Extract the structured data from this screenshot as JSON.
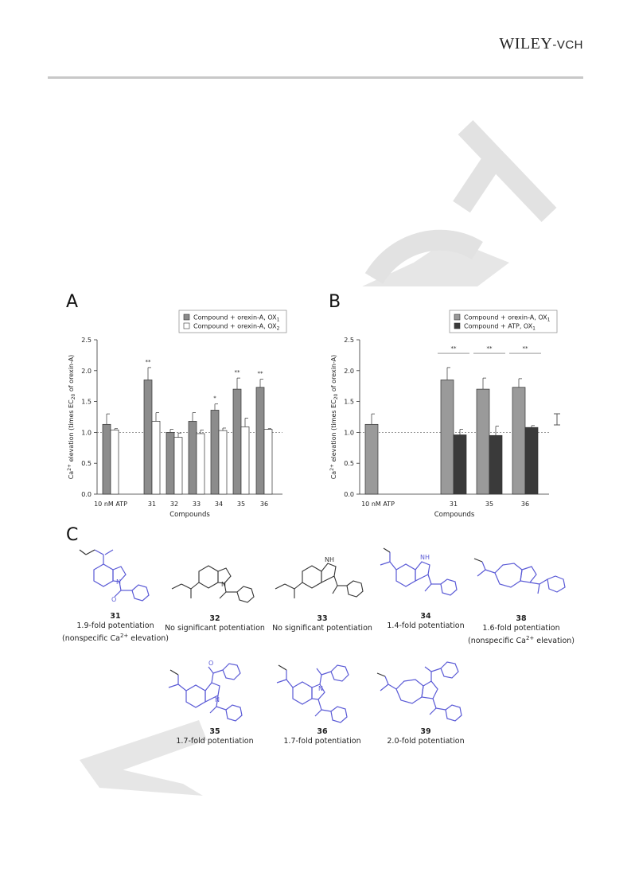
{
  "header": {
    "publisher_main": "WILEY",
    "publisher_suffix": "-VCH"
  },
  "colors": {
    "dark_bar": "#8c8c8c",
    "light_bar": "#ffffff",
    "bar_stroke": "#333333",
    "mid_bar": "#9a9a9a",
    "atp_bar": "#3a3a3a",
    "highlight_structure": "#5a5ad6",
    "watermark": "#e4e4e4"
  },
  "panels": {
    "a": "A",
    "b": "B",
    "c": "C"
  },
  "chart_data": [
    {
      "type": "bar",
      "panel": "A",
      "categories": [
        "10 nM ATP",
        "31",
        "32",
        "33",
        "34",
        "35",
        "36"
      ],
      "series": [
        {
          "name": "Compound + orexin-A, OX",
          "name_sub": "1",
          "values": [
            1.13,
            1.85,
            1.0,
            1.18,
            1.36,
            1.7,
            1.73
          ],
          "errors": [
            0.17,
            0.2,
            0.05,
            0.14,
            0.1,
            0.18,
            0.13
          ]
        },
        {
          "name": "Compound + orexin-A, OX",
          "name_sub": "2",
          "values": [
            1.04,
            1.18,
            0.92,
            0.98,
            1.03,
            1.09,
            1.05
          ],
          "errors": [
            0.02,
            0.14,
            0.07,
            0.06,
            0.04,
            0.14,
            0.01
          ]
        }
      ],
      "significance": [
        "",
        "**",
        "",
        "",
        "*",
        "**",
        "**"
      ],
      "xlabel": "Compounds",
      "ylabel_pre": "Ca",
      "ylabel_sup": "2+",
      "ylabel_mid": " elevation (times EC",
      "ylabel_sub": "20",
      "ylabel_post": " of orexin-A)",
      "ylim": [
        0,
        2.5
      ],
      "yticks": [
        "0.0",
        "0.5",
        "1.0",
        "1.5",
        "2.0",
        "2.5"
      ],
      "reference_line": 1.0,
      "legend_position": "top-right"
    },
    {
      "type": "bar",
      "panel": "B",
      "categories": [
        "10 nM ATP",
        "31",
        "35",
        "36"
      ],
      "series": [
        {
          "name": "Compound + orexin-A, OX",
          "name_sub": "1",
          "values": [
            1.13,
            1.85,
            1.7,
            1.73
          ],
          "errors": [
            0.17,
            0.2,
            0.18,
            0.14
          ]
        },
        {
          "name": "Compound + ATP, OX",
          "name_sub": "1",
          "values": [
            null,
            0.96,
            0.95,
            1.08
          ],
          "errors": [
            null,
            0.09,
            0.15,
            0.03
          ]
        }
      ],
      "significance_brackets": [
        "**",
        "**",
        "**"
      ],
      "xlabel": "Compounds",
      "ylabel_pre": "Ca",
      "ylabel_sup": "2+",
      "ylabel_mid": " elevation (times EC",
      "ylabel_sub": "20",
      "ylabel_post": " of orexin-A)",
      "ylim": [
        0,
        2.5
      ],
      "yticks": [
        "0.0",
        "0.5",
        "1.0",
        "1.5",
        "2.0",
        "2.5"
      ],
      "reference_line": 1.0,
      "legend_position": "top-right"
    }
  ],
  "compounds": {
    "c31": {
      "num": "31",
      "line1": "1.9-fold potentiation",
      "line2_pre": "(nonspecific Ca",
      "line2_sup": "2+",
      "line2_post": " elevation)"
    },
    "c32": {
      "num": "32",
      "line1": "No significant potentiation"
    },
    "c33": {
      "num": "33",
      "line1": "No significant potentiation"
    },
    "c34": {
      "num": "34",
      "line1": "1.4-fold potentiation"
    },
    "c38": {
      "num": "38",
      "line1": "1.6-fold potentiation",
      "line2_pre": "(nonspecific Ca",
      "line2_sup": "2+",
      "line2_post": " elevation)"
    },
    "c35": {
      "num": "35",
      "line1": "1.7-fold potentiation"
    },
    "c36": {
      "num": "36",
      "line1": "1.7-fold potentiation"
    },
    "c39": {
      "num": "39",
      "line1": "2.0-fold potentiation"
    }
  },
  "atom_labels": {
    "n": "N",
    "o": "O",
    "nh": "H"
  }
}
